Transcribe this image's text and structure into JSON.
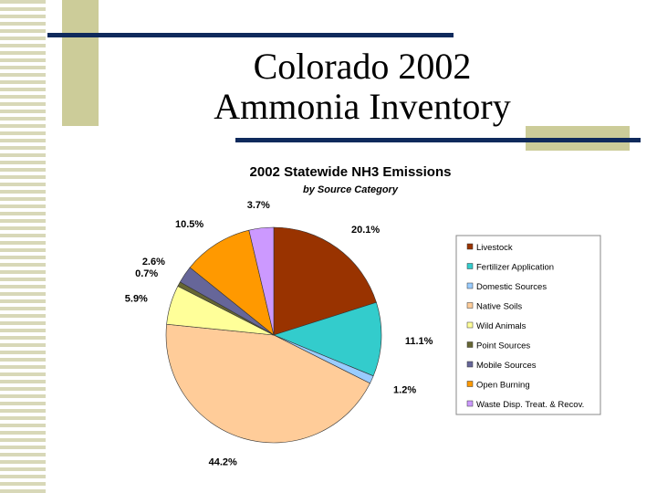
{
  "slide": {
    "title_lines": [
      "Colorado 2002",
      "Ammonia Inventory"
    ]
  },
  "chart_data": {
    "type": "pie",
    "title": "2002 Statewide NH3 Emissions",
    "subtitle": "by Source Category",
    "categories": [
      "Livestock",
      "Fertilizer Application",
      "Domestic Sources",
      "Native Soils",
      "Wild Animals",
      "Point Sources",
      "Mobile Sources",
      "Open Burning",
      "Waste Disp. Treat. & Recov."
    ],
    "values": [
      20.1,
      11.1,
      1.2,
      44.2,
      5.9,
      0.7,
      2.6,
      10.5,
      3.7
    ],
    "value_labels": [
      "20.1%",
      "11.1%",
      "1.2%",
      "44.2%",
      "5.9%",
      "0.7%",
      "2.6%",
      "10.5%",
      "3.7%"
    ],
    "colors": [
      "#993300",
      "#33cccc",
      "#99ccff",
      "#ffcc99",
      "#ffff99",
      "#666633",
      "#666699",
      "#ff9900",
      "#cc99ff"
    ],
    "legend": "right"
  }
}
